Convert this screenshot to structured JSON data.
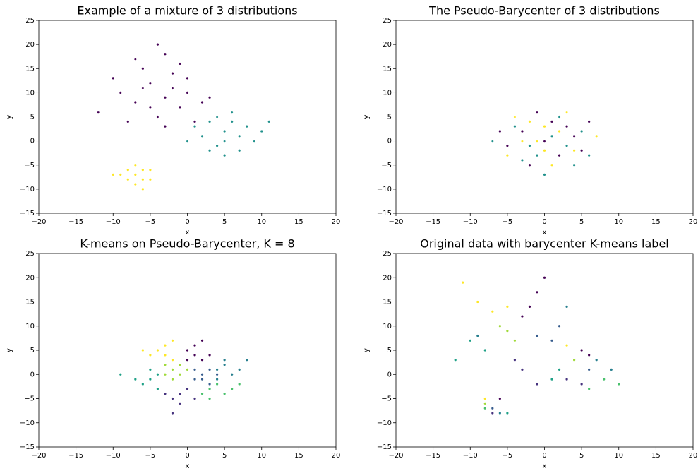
{
  "chart_data": [
    {
      "type": "scatter",
      "title": "Example of a mixture of 3 distributions",
      "xlabel": "x",
      "ylabel": "y",
      "xlim": [
        -20,
        20
      ],
      "ylim": [
        -15,
        25
      ],
      "xticks": [
        {
          "value": -20,
          "label": "−20"
        },
        {
          "value": -15,
          "label": "−15"
        },
        {
          "value": -10,
          "label": "−10"
        },
        {
          "value": -5,
          "label": "−5"
        },
        0,
        5,
        10,
        15,
        20
      ],
      "yticks": [
        {
          "value": -15,
          "label": "−15"
        },
        {
          "value": -10,
          "label": "−10"
        },
        {
          "value": -5,
          "label": "−5"
        },
        0,
        5,
        10,
        15,
        20,
        25
      ],
      "series": [
        {
          "color": "#440154",
          "x": [
            -3,
            -5,
            -1,
            -7,
            -2,
            -4,
            0,
            -6,
            -9,
            -3,
            1,
            -8,
            -5,
            -2,
            -10,
            2,
            -4,
            -12,
            -1,
            -6,
            -3,
            0,
            -7,
            3
          ],
          "values": [
            9,
            12,
            7,
            8,
            14,
            5,
            10,
            15,
            10,
            18,
            4,
            4,
            7,
            11,
            13,
            8,
            20,
            6,
            16,
            11,
            3,
            13,
            17,
            9
          ]
        },
        {
          "color": "#21918c",
          "x": [
            5,
            3,
            7,
            4,
            6,
            8,
            2,
            5,
            9,
            1,
            6,
            3,
            10,
            4,
            7,
            0,
            11,
            5
          ],
          "values": [
            2,
            4,
            1,
            -1,
            4,
            3,
            1,
            -3,
            0,
            3,
            6,
            -2,
            2,
            5,
            -2,
            0,
            4,
            0
          ]
        },
        {
          "color": "#fde725",
          "x": [
            -7,
            -8,
            -6,
            -7,
            -9,
            -5,
            -6,
            -8,
            -7,
            -5,
            -10,
            -6
          ],
          "values": [
            -7,
            -6,
            -8,
            -9,
            -7,
            -6,
            -6,
            -8,
            -5,
            -8,
            -7,
            -10
          ]
        }
      ]
    },
    {
      "type": "scatter",
      "title": "The Pseudo-Barycenter of 3 distributions",
      "xlabel": "x",
      "ylabel": "y",
      "xlim": [
        -20,
        20
      ],
      "ylim": [
        -15,
        25
      ],
      "xticks": [
        {
          "value": -20,
          "label": "−20"
        },
        {
          "value": -15,
          "label": "−15"
        },
        {
          "value": -10,
          "label": "−10"
        },
        {
          "value": -5,
          "label": "−5"
        },
        0,
        5,
        10,
        15,
        20
      ],
      "yticks": [
        {
          "value": -15,
          "label": "−15"
        },
        {
          "value": -10,
          "label": "−10"
        },
        {
          "value": -5,
          "label": "−5"
        },
        0,
        5,
        10,
        15,
        20,
        25
      ],
      "series": [
        {
          "color": "#440154",
          "x": [
            0,
            -3,
            2,
            4,
            -5,
            1,
            -2,
            5,
            -1,
            3,
            -6,
            6
          ],
          "values": [
            0,
            2,
            -3,
            1,
            -1,
            4,
            -5,
            -2,
            6,
            3,
            2,
            4
          ]
        },
        {
          "color": "#21918c",
          "x": [
            1,
            -2,
            3,
            -4,
            2,
            -1,
            5,
            -3,
            0,
            6,
            -7,
            4
          ],
          "values": [
            1,
            -1,
            -1,
            3,
            5,
            -3,
            2,
            -4,
            -7,
            -3,
            0,
            -5
          ]
        },
        {
          "color": "#fde725",
          "x": [
            -1,
            2,
            -3,
            0,
            4,
            -2,
            1,
            -5,
            3,
            7,
            -4,
            0
          ],
          "values": [
            0,
            2,
            0,
            -2,
            -2,
            4,
            -5,
            -3,
            6,
            1,
            5,
            3
          ]
        }
      ]
    },
    {
      "type": "scatter",
      "title": "K-means on Pseudo-Barycenter, K = 8",
      "xlabel": "x",
      "ylabel": "y",
      "xlim": [
        -20,
        20
      ],
      "ylim": [
        -15,
        25
      ],
      "xticks": [
        {
          "value": -20,
          "label": "−20"
        },
        {
          "value": -15,
          "label": "−15"
        },
        {
          "value": -10,
          "label": "−10"
        },
        {
          "value": -5,
          "label": "−5"
        },
        0,
        5,
        10,
        15,
        20
      ],
      "yticks": [
        {
          "value": -15,
          "label": "−15"
        },
        {
          "value": -10,
          "label": "−10"
        },
        {
          "value": -5,
          "label": "−5"
        },
        0,
        5,
        10,
        15,
        20,
        25
      ],
      "series": [
        {
          "color": "#440154",
          "x": [
            1,
            0,
            2,
            1,
            3,
            0,
            2
          ],
          "values": [
            4,
            5,
            3,
            6,
            4,
            3,
            7
          ]
        },
        {
          "color": "#46327e",
          "x": [
            -1,
            -2,
            0,
            -3,
            -1,
            1,
            -2
          ],
          "values": [
            -4,
            -5,
            -3,
            -4,
            -6,
            -5,
            -8
          ]
        },
        {
          "color": "#365c8d",
          "x": [
            2,
            3,
            1,
            2,
            4,
            3,
            1
          ],
          "values": [
            0,
            1,
            -1,
            -1,
            0,
            -2,
            1
          ]
        },
        {
          "color": "#277f8e",
          "x": [
            4,
            5,
            6,
            5,
            7,
            4,
            8
          ],
          "values": [
            1,
            2,
            0,
            3,
            1,
            -1,
            3
          ]
        },
        {
          "color": "#1fa187",
          "x": [
            -5,
            -4,
            -6,
            -5,
            -7,
            -4,
            -9
          ],
          "values": [
            -1,
            0,
            -2,
            1,
            -1,
            -3,
            0
          ]
        },
        {
          "color": "#4ac16d",
          "x": [
            3,
            4,
            5,
            3,
            6,
            2,
            7
          ],
          "values": [
            -3,
            -2,
            -4,
            -5,
            -3,
            -4,
            -2
          ]
        },
        {
          "color": "#a0da39",
          "x": [
            -2,
            -1,
            -3,
            -2,
            -1,
            -3,
            0
          ],
          "values": [
            1,
            0,
            2,
            -1,
            2,
            0,
            1
          ]
        },
        {
          "color": "#fde725",
          "x": [
            -3,
            -4,
            -2,
            -3,
            -5,
            -2,
            -6
          ],
          "values": [
            4,
            5,
            3,
            6,
            4,
            7,
            5
          ]
        }
      ]
    },
    {
      "type": "scatter",
      "title": "Original data with barycenter K-means label",
      "xlabel": "x",
      "ylabel": "y",
      "xlim": [
        -20,
        20
      ],
      "ylim": [
        -15,
        25
      ],
      "xticks": [
        {
          "value": -20,
          "label": "−20"
        },
        {
          "value": -15,
          "label": "−15"
        },
        {
          "value": -10,
          "label": "−10"
        },
        {
          "value": -5,
          "label": "−5"
        },
        0,
        5,
        10,
        15,
        20
      ],
      "yticks": [
        {
          "value": -15,
          "label": "−15"
        },
        {
          "value": -10,
          "label": "−10"
        },
        {
          "value": -5,
          "label": "−5"
        },
        0,
        5,
        10,
        15,
        20,
        25
      ],
      "series": [
        {
          "color": "#440154",
          "x": [
            -2,
            -1,
            -3,
            5,
            6,
            -6,
            0
          ],
          "values": [
            14,
            17,
            12,
            5,
            4,
            -5,
            20
          ]
        },
        {
          "color": "#46327e",
          "x": [
            -4,
            -3,
            3,
            5,
            -7,
            -1
          ],
          "values": [
            3,
            1,
            -1,
            -2,
            -8,
            -2
          ]
        },
        {
          "color": "#365c8d",
          "x": [
            -1,
            1,
            6,
            2,
            -7
          ],
          "values": [
            8,
            7,
            1,
            10,
            -7
          ]
        },
        {
          "color": "#277f8e",
          "x": [
            7,
            9,
            -9,
            3,
            -6
          ],
          "values": [
            3,
            1,
            8,
            14,
            -8
          ]
        },
        {
          "color": "#1fa187",
          "x": [
            -8,
            -10,
            2,
            1,
            -5,
            -12
          ],
          "values": [
            5,
            7,
            1,
            -1,
            -8,
            3
          ]
        },
        {
          "color": "#4ac16d",
          "x": [
            8,
            6,
            -8,
            10
          ],
          "values": [
            -1,
            -3,
            -7,
            -2
          ]
        },
        {
          "color": "#a0da39",
          "x": [
            -5,
            -4,
            4,
            -8,
            -6
          ],
          "values": [
            9,
            7,
            3,
            -6,
            10
          ]
        },
        {
          "color": "#fde725",
          "x": [
            -7,
            -9,
            -5,
            3,
            -8,
            -11
          ],
          "values": [
            13,
            15,
            14,
            6,
            -5,
            19
          ]
        }
      ]
    }
  ]
}
